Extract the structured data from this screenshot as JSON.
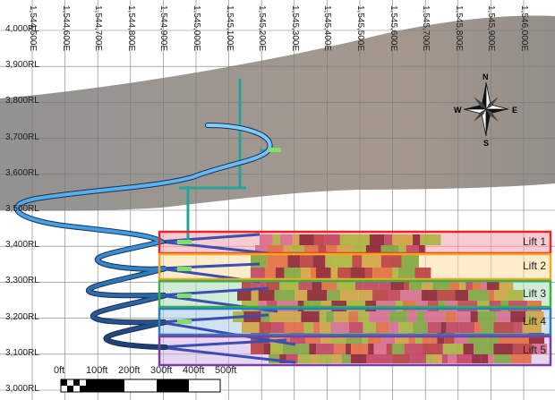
{
  "elevations": [
    "4,000RL",
    "3,900RL",
    "3,800RL",
    "3,700RL",
    "3,600RL",
    "3,500RL",
    "3,400RL",
    "3,300RL",
    "3,200RL",
    "3,100RL",
    "3,000RL"
  ],
  "eastings": [
    "1,544,500E",
    "1,544,600E",
    "1,544,700E",
    "1,544,800E",
    "1,544,900E",
    "1,545,000E",
    "1,545,100E",
    "1,545,200E",
    "1,545,300E",
    "1,545,400E",
    "1,545,500E",
    "1,545,600E",
    "1,545,700E",
    "1,545,800E",
    "1,545,900E",
    "1,546,000E"
  ],
  "lifts": [
    {
      "label": "Lift 1",
      "color": "#e8262a",
      "fill": "rgba(240,160,170,0.55)"
    },
    {
      "label": "Lift 2",
      "color": "#f5a623",
      "fill": "rgba(255,220,160,0.55)"
    },
    {
      "label": "Lift 3",
      "color": "#3aae49",
      "fill": "rgba(170,220,180,0.55)"
    },
    {
      "label": "Lift 4",
      "color": "#2a7fc1",
      "fill": "rgba(170,200,230,0.55)"
    },
    {
      "label": "Lift 5",
      "color": "#7b3fa0",
      "fill": "rgba(210,180,230,0.55)"
    }
  ],
  "scale_bar": {
    "ticks": [
      "0ft",
      "100ft",
      "200ft",
      "300ft",
      "400ft",
      "500ft"
    ]
  },
  "compass": {
    "north": "N",
    "south": "S",
    "east": "E",
    "west": "W"
  }
}
